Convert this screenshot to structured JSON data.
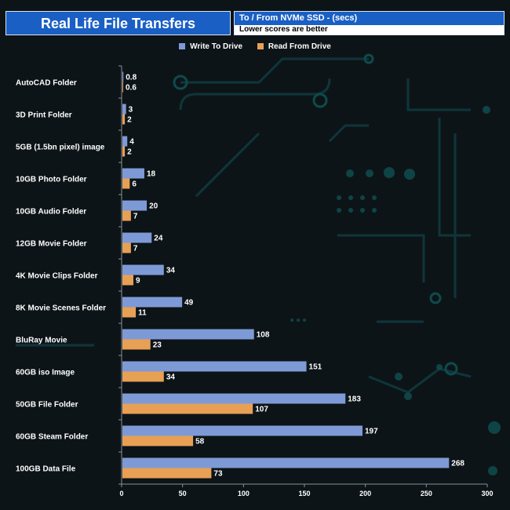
{
  "header": {
    "title": "Real Life File Transfers",
    "subtitle": "To /  From NVMe  SSD - (secs)",
    "note": "Lower scores are better"
  },
  "colors": {
    "write": "#7e9ad6",
    "read": "#e8a055",
    "title_bg": "#1a5fc4"
  },
  "chart_data": {
    "type": "bar",
    "orientation": "horizontal",
    "title": "Real Life File Transfers",
    "subtitle": "To /  From NVMe  SSD - (secs)",
    "note": "Lower scores are better",
    "categories": [
      "AutoCAD Folder",
      "3D Print Folder",
      "5GB (1.5bn pixel) image",
      "10GB Photo Folder",
      "10GB Audio Folder",
      "12GB Movie Folder",
      "4K Movie Clips Folder",
      "8K Movie Scenes Folder",
      "BluRay Movie",
      "60GB iso Image",
      "50GB File Folder",
      "60GB Steam Folder",
      "100GB Data File"
    ],
    "series": [
      {
        "name": "Write To  Drive",
        "values": [
          0.8,
          3,
          4,
          18,
          20,
          24,
          34,
          49,
          108,
          151,
          183,
          197,
          268
        ]
      },
      {
        "name": "Read From  Drive",
        "values": [
          0.6,
          2,
          2,
          6,
          7,
          7,
          9,
          11,
          23,
          34,
          107,
          58,
          73
        ]
      }
    ],
    "xlim": [
      0,
      300
    ],
    "xticks": [
      0,
      50,
      100,
      150,
      200,
      250,
      300
    ],
    "legend": "top-center",
    "grid": false
  }
}
